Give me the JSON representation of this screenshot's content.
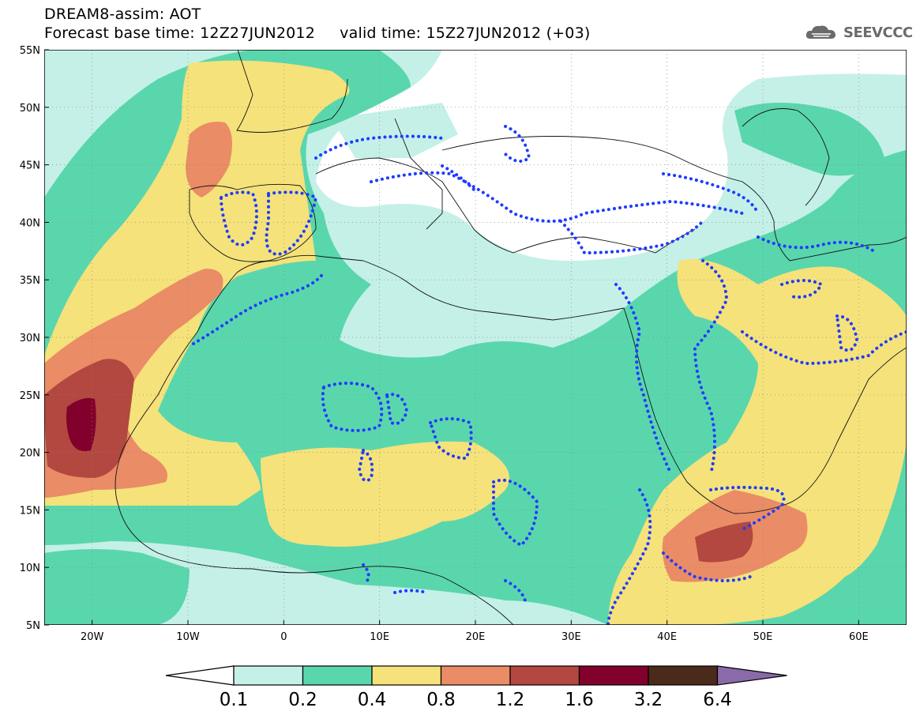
{
  "header": {
    "line1": "DREAM8-assim: AOT",
    "line2": "Forecast base time: 12Z27JUN2012     valid time: 15Z27JUN2012 (+03)",
    "logo_text": "SEEVCCC"
  },
  "map": {
    "lat_labels": [
      "55N",
      "50N",
      "45N",
      "40N",
      "35N",
      "30N",
      "25N",
      "20N",
      "15N",
      "10N",
      "5N"
    ],
    "lon_labels": [
      "20W",
      "10W",
      "0",
      "10E",
      "20E",
      "30E",
      "40E",
      "50E",
      "60E"
    ],
    "lat_range": [
      5,
      55
    ],
    "lon_range": [
      -25,
      65
    ]
  },
  "colorbar": {
    "labels": [
      "0.1",
      "0.2",
      "0.4",
      "0.8",
      "1.2",
      "1.6",
      "3.2",
      "6.4"
    ],
    "colors": [
      "#c4f0e8",
      "#5ad6ad",
      "#f5e27a",
      "#ea8c66",
      "#b2483f",
      "#82002c",
      "#4a2a1a"
    ],
    "extend_max_color": "#8a6aa8"
  },
  "palette": {
    "c01": "#c4f0e8",
    "c02": "#5ad6ad",
    "c04": "#f5e27a",
    "c08": "#ea8c66",
    "c12": "#b2483f",
    "c16": "#82002c",
    "contour": "#1f3cff"
  }
}
